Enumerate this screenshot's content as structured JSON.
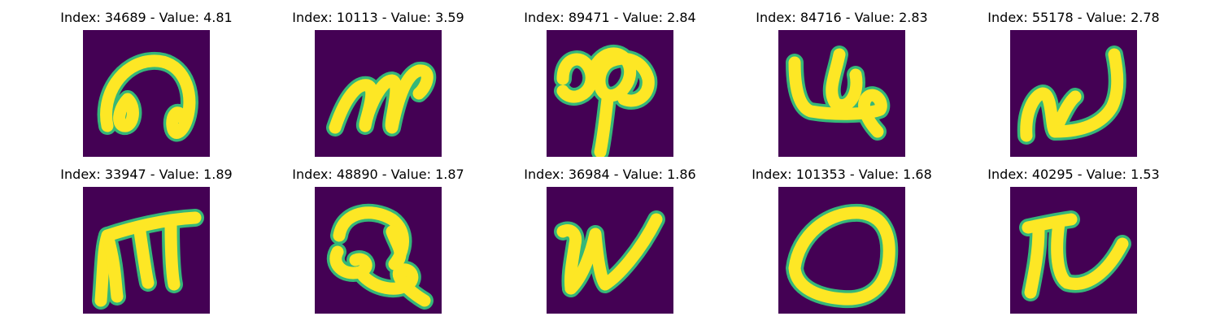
{
  "colors": {
    "background": "#440154",
    "stroke": "#fde725",
    "edge": "#35b779"
  },
  "panels": [
    {
      "index_text": "Index: 34689 - Value: 4.81",
      "glyph": "loop-a"
    },
    {
      "index_text": "Index: 10113 - Value: 3.59",
      "glyph": "m-like"
    },
    {
      "index_text": "Index: 89471 - Value: 2.84",
      "glyph": "double-loop"
    },
    {
      "index_text": "Index: 84716 - Value: 2.83",
      "glyph": "u-loop"
    },
    {
      "index_text": "Index: 55178 - Value: 2.78",
      "glyph": "n-hook"
    },
    {
      "index_text": "Index: 33947 - Value: 1.89",
      "glyph": "m-tall"
    },
    {
      "index_text": "Index: 48890 - Value: 1.87",
      "glyph": "knot"
    },
    {
      "index_text": "Index: 36984 - Value: 1.86",
      "glyph": "n-v"
    },
    {
      "index_text": "Index: 101353 - Value: 1.68",
      "glyph": "oval"
    },
    {
      "index_text": "Index: 40295 - Value: 1.53",
      "glyph": "pi-hook"
    }
  ]
}
